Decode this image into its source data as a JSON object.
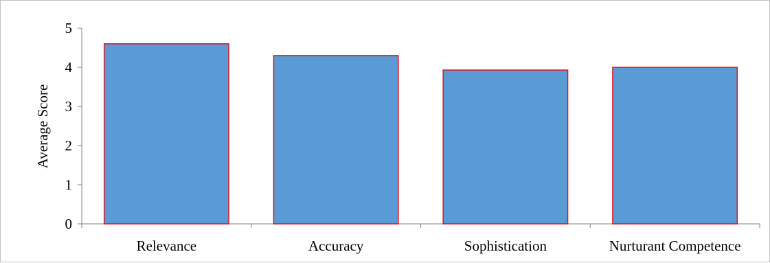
{
  "chart_data": {
    "type": "bar",
    "title": "",
    "xlabel": "",
    "ylabel": "Average Score",
    "categories": [
      "Relevance",
      "Accuracy",
      "Sophistication",
      "Nurturant Competence"
    ],
    "values": [
      4.6,
      4.3,
      3.93,
      4.0
    ],
    "ylim": [
      0,
      5
    ],
    "yticks": [
      0,
      1,
      2,
      3,
      4,
      5
    ],
    "grid": false,
    "legend": "none",
    "colors": {
      "bar_fill": "#5b9bd5",
      "bar_stroke": "#e3101e",
      "axis": "#808080",
      "frame": "#bfbfbf"
    }
  }
}
